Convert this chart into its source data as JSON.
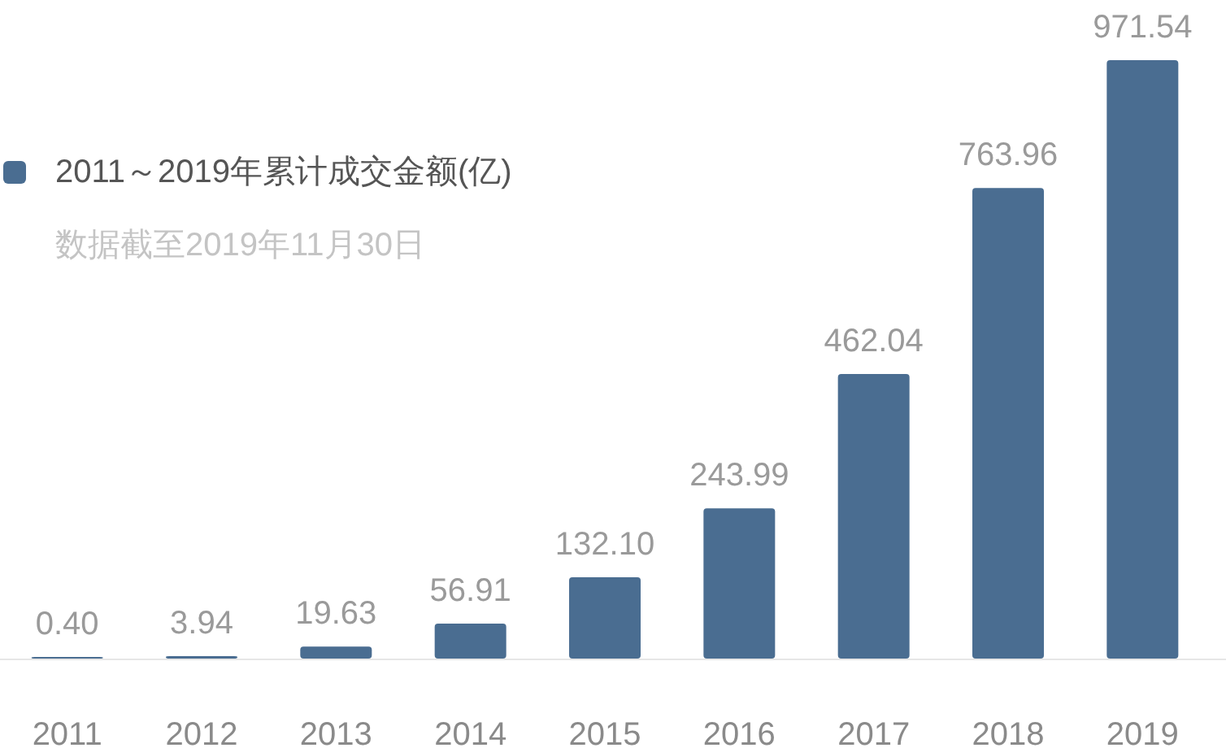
{
  "chart_data": {
    "type": "bar",
    "subtitle": "数据截至2019年11月30日",
    "categories": [
      "2011",
      "2012",
      "2013",
      "2014",
      "2015",
      "2016",
      "2017",
      "2018",
      "2019"
    ],
    "series": [
      {
        "name": "2011～2019年累计成交金额(亿)",
        "color": "#4a6d91",
        "values": [
          0.4,
          3.94,
          19.63,
          56.91,
          132.1,
          243.99,
          462.04,
          763.96,
          971.54
        ],
        "value_labels": [
          "0.40",
          "3.94",
          "19.63",
          "56.91",
          "132.10",
          "243.99",
          "462.04",
          "763.96",
          "971.54"
        ]
      }
    ],
    "legend": "top left"
  }
}
